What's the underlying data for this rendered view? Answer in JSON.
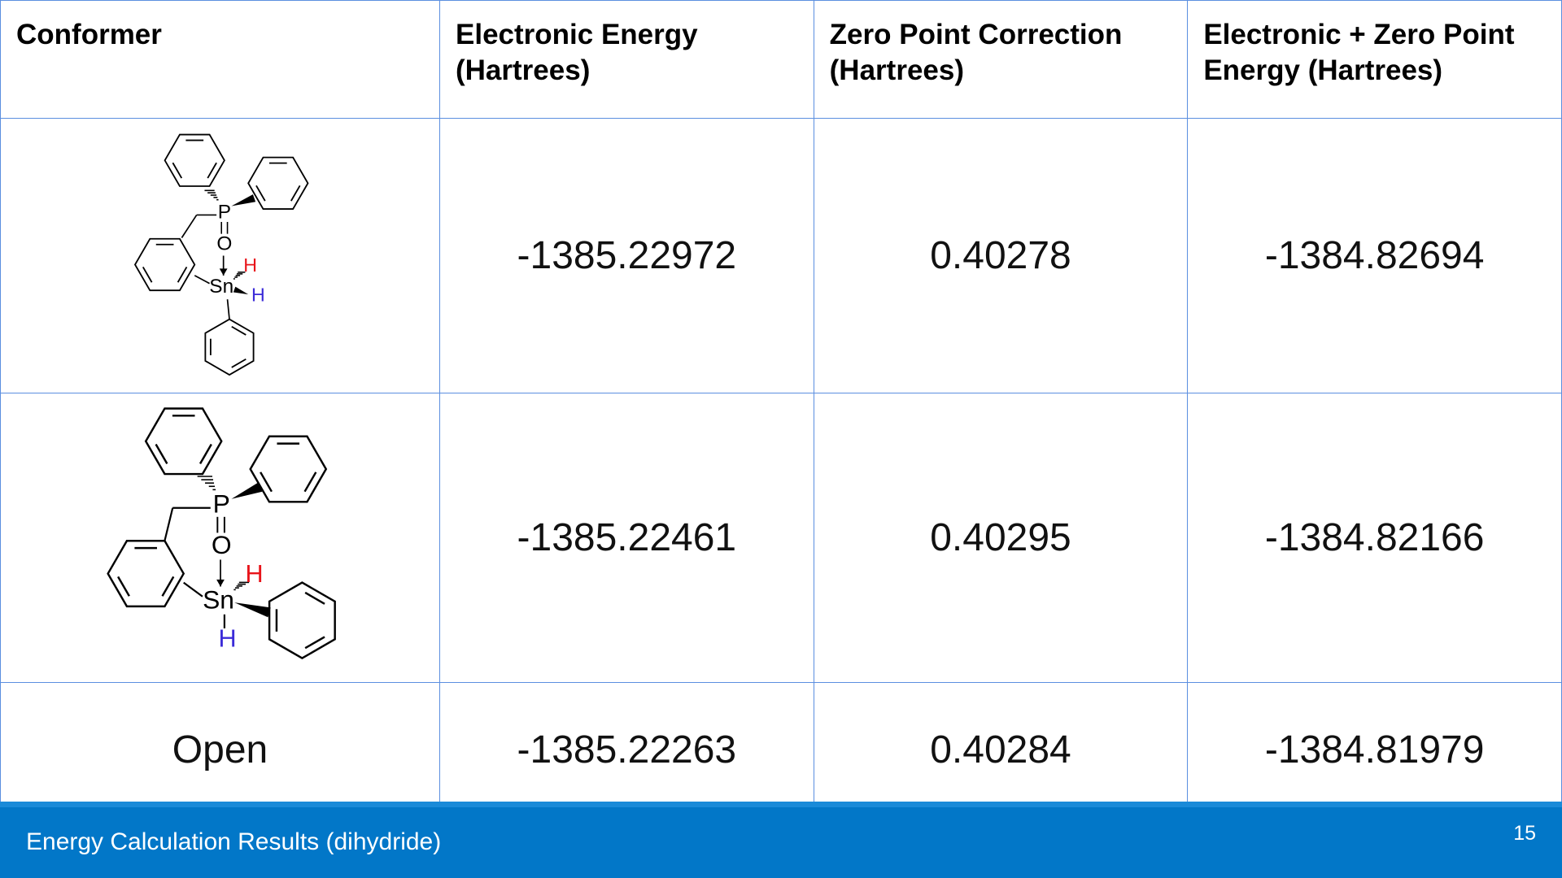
{
  "slide": {
    "table": {
      "header": [
        "Conformer",
        "Electronic Energy (Hartrees)",
        "Zero Point Correction (Hartrees)",
        "Electronic + Zero Point Energy (Hartrees)"
      ],
      "rows": [
        [
          {
            "atoms": [
              "P",
              "O",
              "Sn",
              "H",
              "H"
            ]
          },
          -1385.22972,
          0.40278,
          -1384.82694
        ],
        [
          {
            "atoms": [
              "P",
              "O",
              "Sn",
              "H",
              "H"
            ]
          },
          -1385.22461,
          0.40295,
          -1384.82166
        ],
        [
          "Open",
          -1385.22263,
          0.40284,
          -1384.81979
        ]
      ]
    },
    "footer": {
      "title": "Energy Calculation Results (dihydride)",
      "page": "15"
    }
  }
}
